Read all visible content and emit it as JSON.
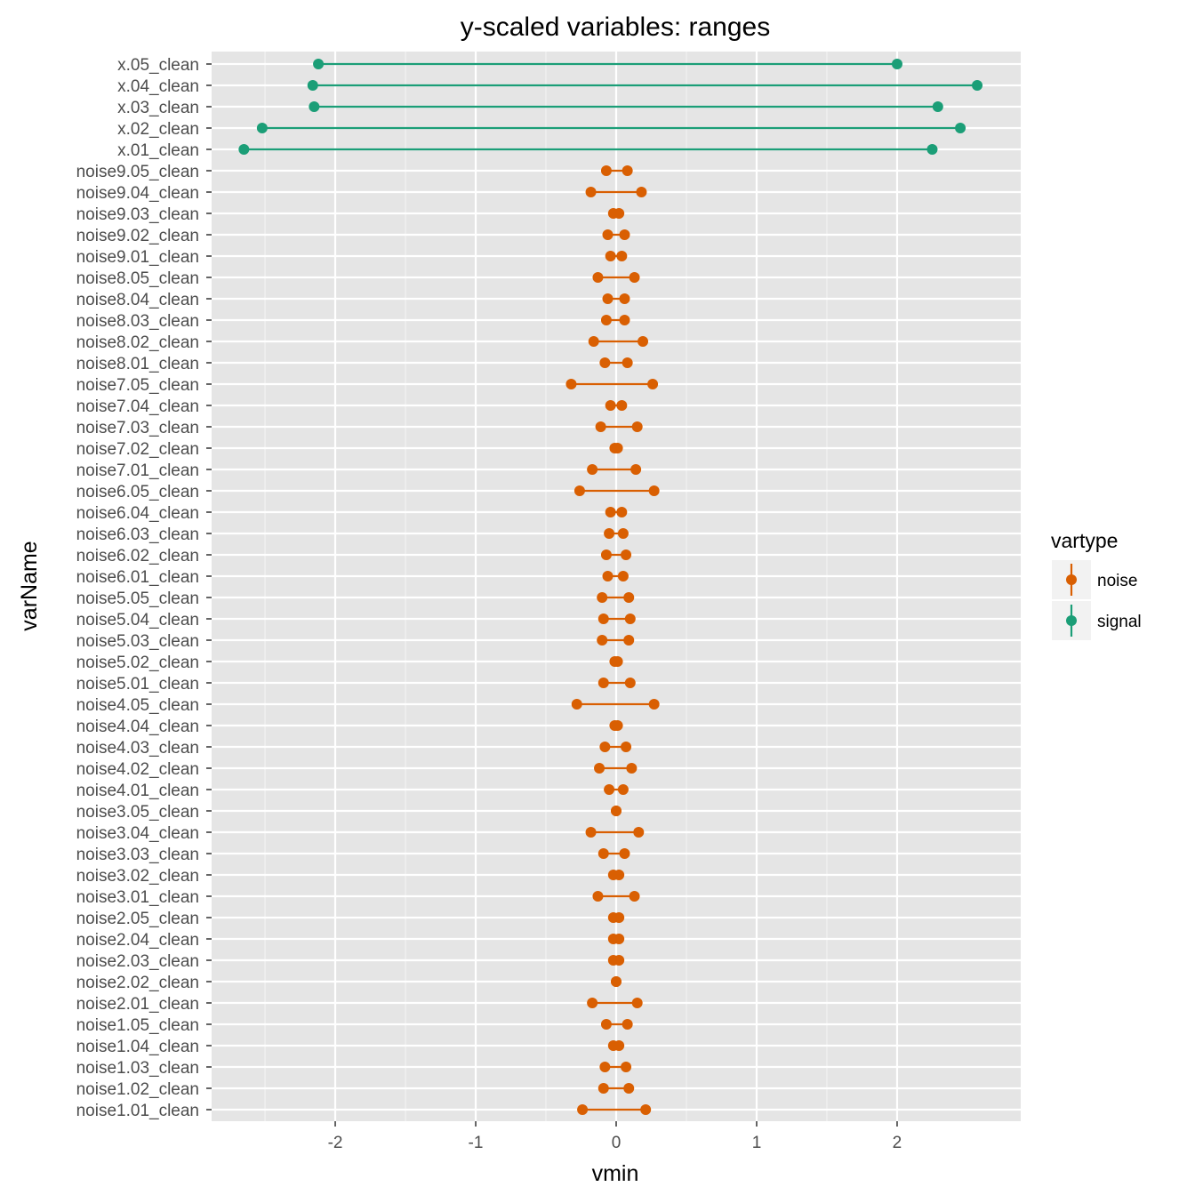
{
  "chart_data": {
    "type": "range-dot",
    "title": "y-scaled variables: ranges",
    "xlabel": "vmin",
    "ylabel": "varName",
    "xlim": [
      -2.88,
      2.88
    ],
    "xticks": [
      -2,
      -1,
      0,
      1,
      2
    ],
    "grid": true,
    "legend": {
      "title": "vartype",
      "position": "right",
      "entries": [
        {
          "name": "noise",
          "color": "#d95f02"
        },
        {
          "name": "signal",
          "color": "#1b9e77"
        }
      ]
    },
    "rows": [
      {
        "name": "x.05_clean",
        "vartype": "signal",
        "min": -2.12,
        "max": 2.0
      },
      {
        "name": "x.04_clean",
        "vartype": "signal",
        "min": -2.16,
        "max": 2.57
      },
      {
        "name": "x.03_clean",
        "vartype": "signal",
        "min": -2.15,
        "max": 2.29
      },
      {
        "name": "x.02_clean",
        "vartype": "signal",
        "min": -2.52,
        "max": 2.45
      },
      {
        "name": "x.01_clean",
        "vartype": "signal",
        "min": -2.65,
        "max": 2.25
      },
      {
        "name": "noise9.05_clean",
        "vartype": "noise",
        "min": -0.07,
        "max": 0.08
      },
      {
        "name": "noise9.04_clean",
        "vartype": "noise",
        "min": -0.18,
        "max": 0.18
      },
      {
        "name": "noise9.03_clean",
        "vartype": "noise",
        "min": -0.02,
        "max": 0.02
      },
      {
        "name": "noise9.02_clean",
        "vartype": "noise",
        "min": -0.06,
        "max": 0.06
      },
      {
        "name": "noise9.01_clean",
        "vartype": "noise",
        "min": -0.04,
        "max": 0.04
      },
      {
        "name": "noise8.05_clean",
        "vartype": "noise",
        "min": -0.13,
        "max": 0.13
      },
      {
        "name": "noise8.04_clean",
        "vartype": "noise",
        "min": -0.06,
        "max": 0.06
      },
      {
        "name": "noise8.03_clean",
        "vartype": "noise",
        "min": -0.07,
        "max": 0.06
      },
      {
        "name": "noise8.02_clean",
        "vartype": "noise",
        "min": -0.16,
        "max": 0.19
      },
      {
        "name": "noise8.01_clean",
        "vartype": "noise",
        "min": -0.08,
        "max": 0.08
      },
      {
        "name": "noise7.05_clean",
        "vartype": "noise",
        "min": -0.32,
        "max": 0.26
      },
      {
        "name": "noise7.04_clean",
        "vartype": "noise",
        "min": -0.04,
        "max": 0.04
      },
      {
        "name": "noise7.03_clean",
        "vartype": "noise",
        "min": -0.11,
        "max": 0.15
      },
      {
        "name": "noise7.02_clean",
        "vartype": "noise",
        "min": -0.01,
        "max": 0.01
      },
      {
        "name": "noise7.01_clean",
        "vartype": "noise",
        "min": -0.17,
        "max": 0.14
      },
      {
        "name": "noise6.05_clean",
        "vartype": "noise",
        "min": -0.26,
        "max": 0.27
      },
      {
        "name": "noise6.04_clean",
        "vartype": "noise",
        "min": -0.04,
        "max": 0.04
      },
      {
        "name": "noise6.03_clean",
        "vartype": "noise",
        "min": -0.05,
        "max": 0.05
      },
      {
        "name": "noise6.02_clean",
        "vartype": "noise",
        "min": -0.07,
        "max": 0.07
      },
      {
        "name": "noise6.01_clean",
        "vartype": "noise",
        "min": -0.06,
        "max": 0.05
      },
      {
        "name": "noise5.05_clean",
        "vartype": "noise",
        "min": -0.1,
        "max": 0.09
      },
      {
        "name": "noise5.04_clean",
        "vartype": "noise",
        "min": -0.09,
        "max": 0.1
      },
      {
        "name": "noise5.03_clean",
        "vartype": "noise",
        "min": -0.1,
        "max": 0.09
      },
      {
        "name": "noise5.02_clean",
        "vartype": "noise",
        "min": -0.01,
        "max": 0.01
      },
      {
        "name": "noise5.01_clean",
        "vartype": "noise",
        "min": -0.09,
        "max": 0.1
      },
      {
        "name": "noise4.05_clean",
        "vartype": "noise",
        "min": -0.28,
        "max": 0.27
      },
      {
        "name": "noise4.04_clean",
        "vartype": "noise",
        "min": -0.01,
        "max": 0.01
      },
      {
        "name": "noise4.03_clean",
        "vartype": "noise",
        "min": -0.08,
        "max": 0.07
      },
      {
        "name": "noise4.02_clean",
        "vartype": "noise",
        "min": -0.12,
        "max": 0.11
      },
      {
        "name": "noise4.01_clean",
        "vartype": "noise",
        "min": -0.05,
        "max": 0.05
      },
      {
        "name": "noise3.05_clean",
        "vartype": "noise",
        "min": 0.0,
        "max": 0.0
      },
      {
        "name": "noise3.04_clean",
        "vartype": "noise",
        "min": -0.18,
        "max": 0.16
      },
      {
        "name": "noise3.03_clean",
        "vartype": "noise",
        "min": -0.09,
        "max": 0.06
      },
      {
        "name": "noise3.02_clean",
        "vartype": "noise",
        "min": -0.02,
        "max": 0.02
      },
      {
        "name": "noise3.01_clean",
        "vartype": "noise",
        "min": -0.13,
        "max": 0.13
      },
      {
        "name": "noise2.05_clean",
        "vartype": "noise",
        "min": -0.02,
        "max": 0.02
      },
      {
        "name": "noise2.04_clean",
        "vartype": "noise",
        "min": -0.02,
        "max": 0.02
      },
      {
        "name": "noise2.03_clean",
        "vartype": "noise",
        "min": -0.02,
        "max": 0.02
      },
      {
        "name": "noise2.02_clean",
        "vartype": "noise",
        "min": 0.0,
        "max": 0.0
      },
      {
        "name": "noise2.01_clean",
        "vartype": "noise",
        "min": -0.17,
        "max": 0.15
      },
      {
        "name": "noise1.05_clean",
        "vartype": "noise",
        "min": -0.07,
        "max": 0.08
      },
      {
        "name": "noise1.04_clean",
        "vartype": "noise",
        "min": -0.02,
        "max": 0.02
      },
      {
        "name": "noise1.03_clean",
        "vartype": "noise",
        "min": -0.08,
        "max": 0.07
      },
      {
        "name": "noise1.02_clean",
        "vartype": "noise",
        "min": -0.09,
        "max": 0.09
      },
      {
        "name": "noise1.01_clean",
        "vartype": "noise",
        "min": -0.24,
        "max": 0.21
      }
    ]
  }
}
